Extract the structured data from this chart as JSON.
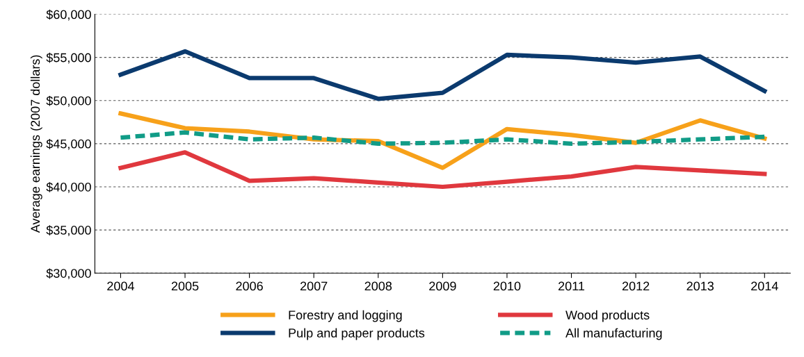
{
  "chart_data": {
    "type": "line",
    "ylabel": "Average earnings (2007 dollars)",
    "categories": [
      "2004",
      "2005",
      "2006",
      "2007",
      "2008",
      "2009",
      "2010",
      "2011",
      "2012",
      "2013",
      "2014"
    ],
    "series": [
      {
        "name": "Forestry and logging",
        "color": "#f7a11a",
        "values": [
          48500,
          46800,
          46400,
          45500,
          45300,
          42200,
          46700,
          46000,
          45100,
          47700,
          45600
        ]
      },
      {
        "name": "Wood products",
        "color": "#e0383e",
        "values": [
          42200,
          44000,
          40700,
          41000,
          40500,
          40000,
          40600,
          41200,
          42300,
          41900,
          41500
        ]
      },
      {
        "name": "Pulp and paper products",
        "color": "#0b3a6e",
        "values": [
          53000,
          55700,
          52600,
          52600,
          50200,
          50900,
          55300,
          55000,
          54400,
          55100,
          51100
        ]
      },
      {
        "name": "All manufacturing",
        "color": "#119c87",
        "line_style": "dashed",
        "values": [
          45700,
          46300,
          45500,
          45700,
          45000,
          45100,
          45500,
          45000,
          45200,
          45500,
          45800
        ]
      }
    ],
    "ylim": [
      30000,
      60000
    ],
    "yticks": [
      {
        "value": 30000,
        "label": "$30,000"
      },
      {
        "value": 35000,
        "label": "$35,000"
      },
      {
        "value": 40000,
        "label": "$40,000"
      },
      {
        "value": 45000,
        "label": "$45,000"
      },
      {
        "value": 50000,
        "label": "$50,000"
      },
      {
        "value": 55000,
        "label": "$55,000"
      },
      {
        "value": 60000,
        "label": "$60,000"
      }
    ],
    "grid": "y",
    "legend": "bottom",
    "marker": "none"
  }
}
